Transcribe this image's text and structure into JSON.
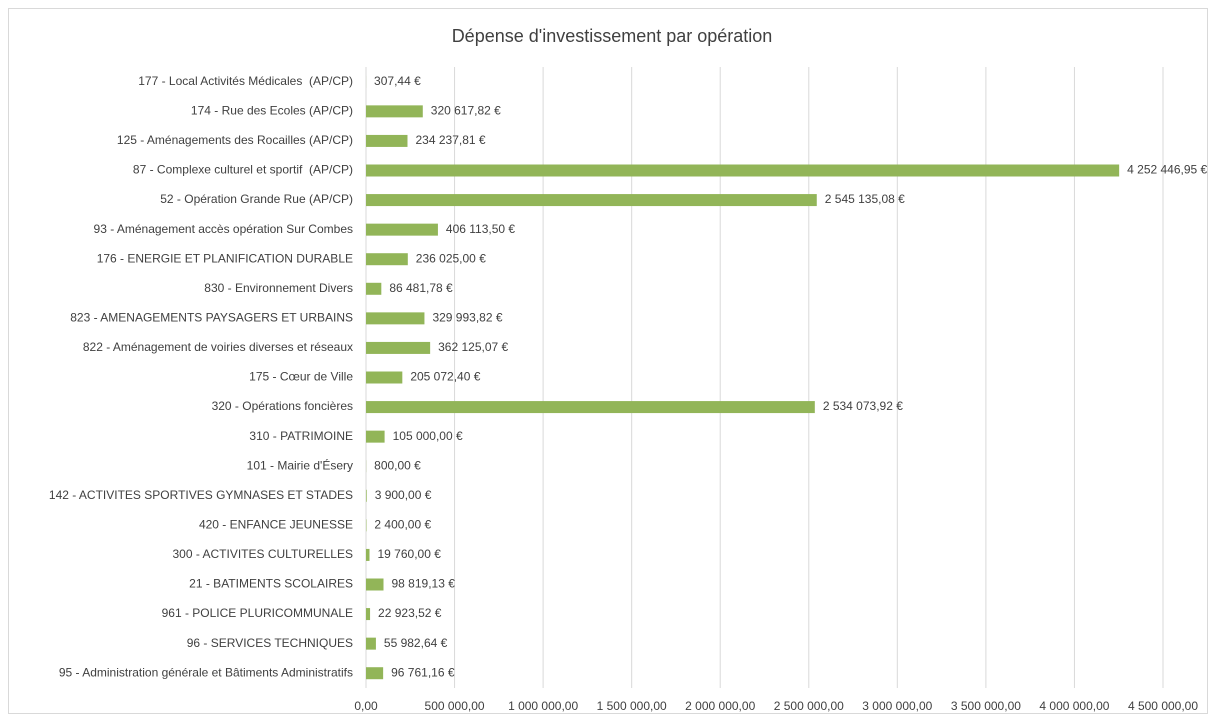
{
  "chart_data": {
    "type": "bar",
    "orientation": "horizontal",
    "title": "Dépense d'investissement par opération",
    "categories": [
      "177 - Local Activités Médicales  (AP/CP)",
      "174 - Rue des Ecoles (AP/CP)",
      "125 - Aménagements des Rocailles (AP/CP)",
      "87 - Complexe culturel et sportif  (AP/CP)",
      "52 - Opération Grande Rue (AP/CP)",
      "93 - Aménagement accès opération Sur Combes",
      "176 - ENERGIE ET PLANIFICATION DURABLE",
      "830 - Environnement Divers",
      "823 - AMENAGEMENTS PAYSAGERS ET URBAINS",
      "822 - Aménagement de voiries diverses et réseaux",
      "175 - Cœur de Ville",
      "320 - Opérations foncières",
      "310 - PATRIMOINE",
      "101 - Mairie d'Ésery",
      "142 - ACTIVITES SPORTIVES GYMNASES ET STADES",
      "420 - ENFANCE JEUNESSE",
      "300 - ACTIVITES CULTURELLES",
      "21 - BATIMENTS SCOLAIRES",
      "961 - POLICE PLURICOMMUNALE",
      "96 - SERVICES TECHNIQUES",
      "95 - Administration générale et Bâtiments Administratifs"
    ],
    "values": [
      307.44,
      320617.82,
      234237.81,
      4252446.95,
      2545135.08,
      406113.5,
      236025.0,
      86481.78,
      329993.82,
      362125.07,
      205072.4,
      2534073.92,
      105000.0,
      800.0,
      3900.0,
      2400.0,
      19760.0,
      98819.13,
      22923.52,
      55982.64,
      96761.16
    ],
    "value_labels": [
      "307,44 €",
      "320 617,82 €",
      "234 237,81 €",
      "4 252 446,95 €",
      "2 545 135,08 €",
      "406 113,50 €",
      "236 025,00 €",
      "86 481,78 €",
      "329 993,82 €",
      "362 125,07 €",
      "205 072,40 €",
      "2 534 073,92 €",
      "105 000,00 €",
      "800,00 €",
      "3 900,00 €",
      "2 400,00 €",
      "19 760,00 €",
      "98 819,13 €",
      "22 923,52 €",
      "55 982,64 €",
      "96 761,16 €"
    ],
    "color": "#92b558",
    "xlim": [
      0,
      4500000
    ],
    "xticks": [
      {
        "value": 0,
        "label": "0,00"
      },
      {
        "value": 500000,
        "label": "500 000,00"
      },
      {
        "value": 1000000,
        "label": "1 000 000,00"
      },
      {
        "value": 1500000,
        "label": "1 500 000,00"
      },
      {
        "value": 2000000,
        "label": "2 000 000,00"
      },
      {
        "value": 2500000,
        "label": "2 500 000,00"
      },
      {
        "value": 3000000,
        "label": "3 000 000,00"
      },
      {
        "value": 3500000,
        "label": "3 500 000,00"
      },
      {
        "value": 4000000,
        "label": "4 000 000,00"
      },
      {
        "value": 4500000,
        "label": "4 500 000,00"
      }
    ],
    "grid": true
  }
}
